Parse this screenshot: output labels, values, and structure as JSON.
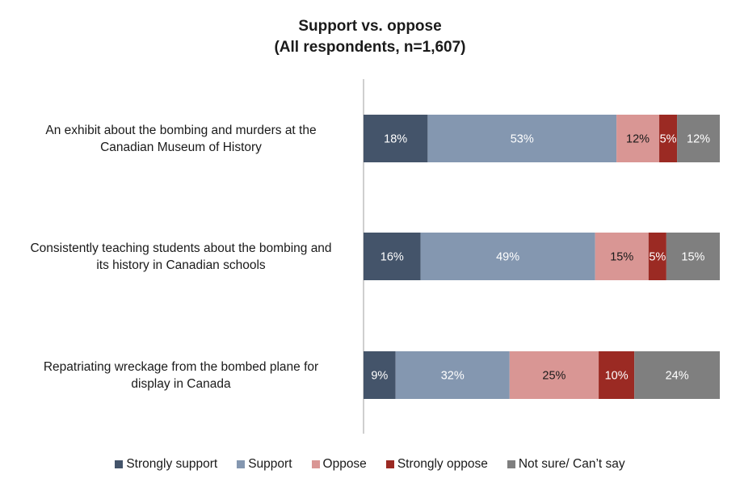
{
  "chart_data": {
    "type": "bar",
    "orientation": "horizontal",
    "stacked": true,
    "title_lines": [
      "Support vs. oppose",
      "(All respondents, n=1,607)"
    ],
    "categories": [
      [
        "An exhibit about the bombing and murders at the",
        "Canadian Museum of History"
      ],
      [
        "Consistently teaching students about the bombing and",
        "its history in Canadian schools"
      ],
      [
        "Repatriating wreckage from the bombed plane for",
        "display in Canada"
      ]
    ],
    "series": [
      {
        "name": "Strongly support",
        "color": "#44546a",
        "label_color": "#ffffff",
        "values": [
          18,
          16,
          9
        ]
      },
      {
        "name": "Support",
        "color": "#8497b0",
        "label_color": "#ffffff",
        "values": [
          53,
          49,
          32
        ]
      },
      {
        "name": "Oppose",
        "color": "#d99694",
        "label_color": "#1a1a1a",
        "values": [
          12,
          15,
          25
        ]
      },
      {
        "name": "Strongly oppose",
        "color": "#9b2a23",
        "label_color": "#ffffff",
        "values": [
          5,
          5,
          10
        ]
      },
      {
        "name": "Not sure/ Can’t say",
        "color": "#7f7f7f",
        "label_color": "#ffffff",
        "values": [
          12,
          15,
          24
        ]
      }
    ],
    "value_suffix": "%",
    "xlim": [
      0,
      100
    ],
    "legend_position": "bottom",
    "grid": false
  }
}
